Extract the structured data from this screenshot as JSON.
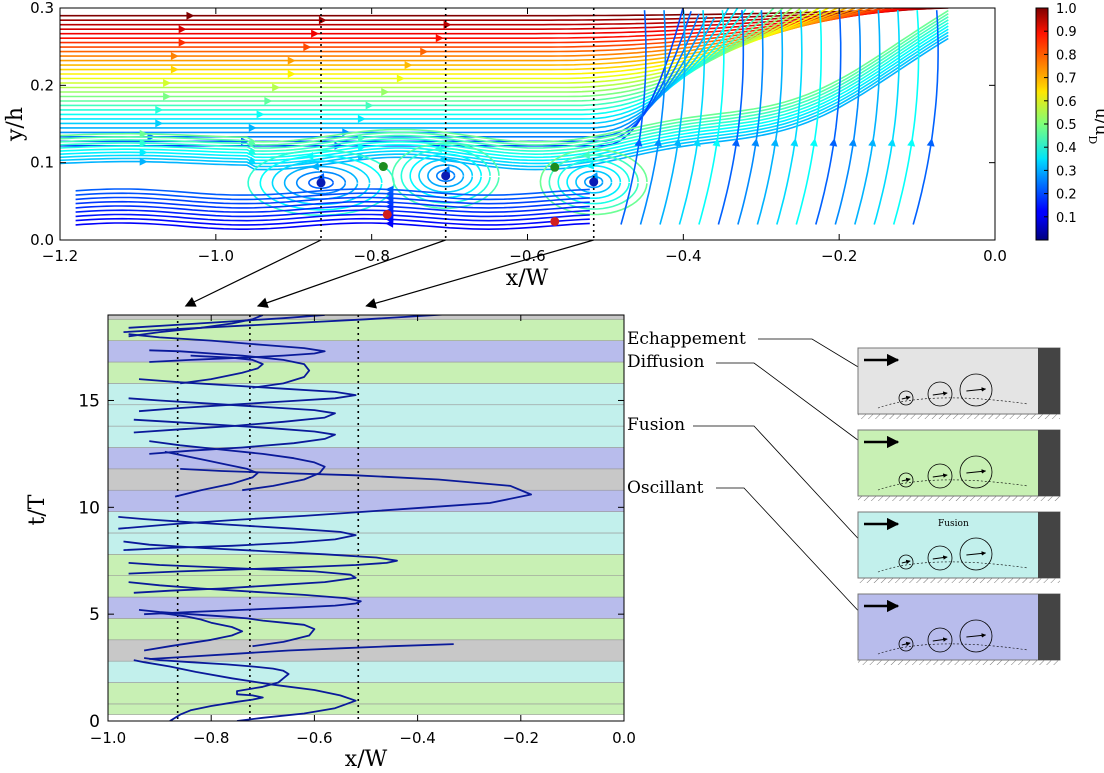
{
  "chart_data": [
    {
      "type": "streamplot",
      "xlabel": "x/W",
      "ylabel": "y/h",
      "xlim": [
        -1.2,
        0.0
      ],
      "ylim": [
        0.0,
        0.3
      ],
      "xticks": [
        "−1.2",
        "−1.0",
        "−0.8",
        "−0.6",
        "−0.4",
        "−0.2",
        "0.0"
      ],
      "xtick_values": [
        -1.2,
        -1.0,
        -0.8,
        -0.6,
        -0.4,
        -0.2,
        0.0
      ],
      "yticks": [
        "0.0",
        "0.1",
        "0.2",
        "0.3"
      ],
      "ytick_values": [
        0.0,
        0.1,
        0.2,
        0.3
      ],
      "colormap": "jet",
      "colorbar_label": "u/u_D",
      "colorbar_range": [
        0.0,
        1.0
      ],
      "colorbar_ticks": [
        "0.1",
        "0.2",
        "0.3",
        "0.4",
        "0.5",
        "0.6",
        "0.7",
        "0.8",
        "0.9",
        "1.0"
      ],
      "colorbar_tick_values": [
        0.1,
        0.2,
        0.3,
        0.4,
        0.5,
        0.6,
        0.7,
        0.8,
        0.9,
        1.0
      ],
      "vortex_centers": [
        {
          "x": -0.865,
          "y": 0.074
        },
        {
          "x": -0.705,
          "y": 0.083
        },
        {
          "x": -0.515,
          "y": 0.075
        }
      ],
      "saddle_points_green": [
        {
          "x": -0.785,
          "y": 0.095
        },
        {
          "x": -0.565,
          "y": 0.094
        }
      ],
      "stagnation_points_red": [
        {
          "x": -0.78,
          "y": 0.033
        },
        {
          "x": -0.565,
          "y": 0.024
        }
      ],
      "dotted_verticals_x": [
        -0.865,
        -0.705,
        -0.515
      ],
      "grid": false
    },
    {
      "type": "line",
      "xlabel": "x/W",
      "ylabel": "t/T",
      "xlim": [
        -1.0,
        0.0
      ],
      "ylim": [
        0,
        19
      ],
      "xticks": [
        "−1.0",
        "−0.8",
        "−0.6",
        "−0.4",
        "−0.2",
        "0.0"
      ],
      "xtick_values": [
        -1.0,
        -0.8,
        -0.6,
        -0.4,
        -0.2,
        0.0
      ],
      "yticks": [
        "0",
        "5",
        "10",
        "15"
      ],
      "ytick_values": [
        0,
        5,
        10,
        15
      ],
      "dotted_verticals_x": [
        -0.865,
        -0.725,
        -0.515
      ],
      "line_color": "#0a1a9a",
      "bands": [
        {
          "from": 0.3,
          "to": 0.8,
          "regime": "Diffusion"
        },
        {
          "from": 0.8,
          "to": 1.8,
          "regime": "Diffusion"
        },
        {
          "from": 1.8,
          "to": 2.8,
          "regime": "Fusion"
        },
        {
          "from": 2.8,
          "to": 3.8,
          "regime": "Echappement"
        },
        {
          "from": 3.8,
          "to": 4.8,
          "regime": "Diffusion"
        },
        {
          "from": 4.8,
          "to": 5.8,
          "regime": "Oscillant"
        },
        {
          "from": 5.8,
          "to": 6.8,
          "regime": "Diffusion"
        },
        {
          "from": 6.8,
          "to": 7.8,
          "regime": "Diffusion"
        },
        {
          "from": 7.8,
          "to": 8.8,
          "regime": "Fusion"
        },
        {
          "from": 8.8,
          "to": 9.8,
          "regime": "Fusion"
        },
        {
          "from": 9.8,
          "to": 10.8,
          "regime": "Oscillant"
        },
        {
          "from": 10.8,
          "to": 11.8,
          "regime": "Echappement"
        },
        {
          "from": 11.8,
          "to": 12.8,
          "regime": "Oscillant"
        },
        {
          "from": 12.8,
          "to": 13.8,
          "regime": "Fusion"
        },
        {
          "from": 13.8,
          "to": 14.8,
          "regime": "Fusion"
        },
        {
          "from": 14.8,
          "to": 15.8,
          "regime": "Fusion"
        },
        {
          "from": 15.8,
          "to": 16.8,
          "regime": "Diffusion"
        },
        {
          "from": 16.8,
          "to": 17.8,
          "regime": "Oscillant"
        },
        {
          "from": 17.8,
          "to": 18.8,
          "regime": "Diffusion"
        },
        {
          "from": 18.8,
          "to": 19.0,
          "regime": "Echappement"
        }
      ],
      "series": [
        {
          "x": [
            -0.88,
            -0.86,
            -0.84,
            -0.8,
            -0.75,
            -0.72,
            -0.7,
            -0.72,
            -0.75,
            -0.75,
            -0.7,
            -0.67,
            -0.66,
            -0.65,
            -0.66,
            -0.68,
            -0.72,
            -0.77,
            -0.84,
            -0.9,
            -0.93
          ],
          "t": [
            0.0,
            0.3,
            0.5,
            0.7,
            0.9,
            1.0,
            1.1,
            1.2,
            1.25,
            1.4,
            1.6,
            1.8,
            2.0,
            2.2,
            2.35,
            2.45,
            2.55,
            2.65,
            2.75,
            2.85,
            2.95
          ]
        },
        {
          "x": [
            -0.75,
            -0.7,
            -0.62,
            -0.56,
            -0.52,
            -0.55,
            -0.6,
            -0.68,
            -0.76,
            -0.83,
            -0.88,
            -0.93,
            -0.95
          ],
          "t": [
            0.0,
            0.15,
            0.35,
            0.6,
            0.95,
            1.2,
            1.45,
            1.7,
            2.0,
            2.3,
            2.55,
            2.75,
            2.85
          ]
        },
        {
          "x": [
            -0.92,
            -0.85,
            -0.75,
            -0.65,
            -0.55,
            -0.45,
            -0.33
          ],
          "t": [
            2.9,
            3.0,
            3.15,
            3.3,
            3.4,
            3.5,
            3.6
          ]
        },
        {
          "x": [
            -0.93,
            -0.88,
            -0.8,
            -0.76,
            -0.74,
            -0.76,
            -0.8,
            -0.82,
            -0.85,
            -0.88,
            -0.9
          ],
          "t": [
            3.3,
            3.5,
            3.8,
            4.0,
            4.2,
            4.4,
            4.6,
            4.75,
            4.9,
            5.0,
            5.05
          ]
        },
        {
          "x": [
            -0.72,
            -0.66,
            -0.61,
            -0.6,
            -0.62,
            -0.66,
            -0.7,
            -0.73,
            -0.78,
            -0.84,
            -0.9,
            -0.94
          ],
          "t": [
            3.5,
            3.7,
            4.0,
            4.3,
            4.5,
            4.6,
            4.7,
            4.8,
            4.9,
            5.0,
            5.1,
            5.2
          ]
        },
        {
          "x": [
            -0.93,
            -0.84,
            -0.74,
            -0.64,
            -0.56,
            -0.52,
            -0.51,
            -0.54,
            -0.62,
            -0.72,
            -0.82,
            -0.9,
            -0.96
          ],
          "t": [
            5.0,
            5.1,
            5.2,
            5.3,
            5.4,
            5.5,
            5.6,
            5.75,
            5.9,
            6.05,
            6.2,
            6.35,
            6.5
          ]
        },
        {
          "x": [
            -0.95,
            -0.88,
            -0.78,
            -0.68,
            -0.58,
            -0.52,
            -0.53,
            -0.6,
            -0.7,
            -0.8,
            -0.9,
            -0.96
          ],
          "t": [
            6.0,
            6.1,
            6.2,
            6.35,
            6.5,
            6.7,
            6.85,
            7.0,
            7.1,
            7.2,
            7.3,
            7.4
          ]
        },
        {
          "x": [
            -0.96,
            -0.86,
            -0.74,
            -0.62,
            -0.52,
            -0.46,
            -0.44,
            -0.48,
            -0.58,
            -0.7,
            -0.82,
            -0.92,
            -0.97
          ],
          "t": [
            6.9,
            7.0,
            7.1,
            7.2,
            7.3,
            7.4,
            7.5,
            7.65,
            7.8,
            7.95,
            8.1,
            8.25,
            8.4
          ]
        },
        {
          "x": [
            -0.97,
            -0.88,
            -0.76,
            -0.64,
            -0.56,
            -0.52,
            -0.55,
            -0.64,
            -0.74,
            -0.84,
            -0.93,
            -0.98
          ],
          "t": [
            8.0,
            8.1,
            8.2,
            8.35,
            8.5,
            8.7,
            8.85,
            9.0,
            9.15,
            9.3,
            9.45,
            9.55
          ]
        },
        {
          "x": [
            -0.98,
            -0.88,
            -0.76,
            -0.62,
            -0.5,
            -0.38,
            -0.26,
            -0.18,
            -0.22,
            -0.36,
            -0.52,
            -0.66,
            -0.78,
            -0.86
          ],
          "t": [
            9.0,
            9.2,
            9.4,
            9.6,
            9.8,
            10.0,
            10.2,
            10.6,
            11.0,
            11.3,
            11.5,
            11.6,
            11.7,
            11.8
          ]
        },
        {
          "x": [
            -0.87,
            -0.82,
            -0.76,
            -0.72,
            -0.71,
            -0.73,
            -0.77,
            -0.81,
            -0.85,
            -0.89
          ],
          "t": [
            10.5,
            10.8,
            11.1,
            11.4,
            11.6,
            11.8,
            12.0,
            12.2,
            12.4,
            12.6
          ]
        },
        {
          "x": [
            -0.74,
            -0.68,
            -0.62,
            -0.59,
            -0.58,
            -0.6,
            -0.64,
            -0.7,
            -0.78,
            -0.86,
            -0.92
          ],
          "t": [
            10.8,
            11.0,
            11.3,
            11.6,
            11.9,
            12.1,
            12.3,
            12.5,
            12.7,
            12.9,
            13.1
          ]
        },
        {
          "x": [
            -0.92,
            -0.84,
            -0.74,
            -0.64,
            -0.58,
            -0.56,
            -0.6,
            -0.68,
            -0.78,
            -0.88,
            -0.95
          ],
          "t": [
            12.5,
            12.65,
            12.8,
            13.0,
            13.2,
            13.4,
            13.55,
            13.7,
            13.85,
            14.0,
            14.1
          ]
        },
        {
          "x": [
            -0.95,
            -0.86,
            -0.76,
            -0.66,
            -0.58,
            -0.56,
            -0.6,
            -0.7,
            -0.8,
            -0.9,
            -0.96
          ],
          "t": [
            13.5,
            13.65,
            13.8,
            14.0,
            14.2,
            14.4,
            14.55,
            14.7,
            14.85,
            15.0,
            15.1
          ]
        },
        {
          "x": [
            -0.94,
            -0.86,
            -0.76,
            -0.66,
            -0.56,
            -0.52,
            -0.56,
            -0.66,
            -0.76,
            -0.86,
            -0.94
          ],
          "t": [
            14.5,
            14.65,
            14.8,
            14.95,
            15.1,
            15.25,
            15.4,
            15.55,
            15.7,
            15.85,
            16.0
          ]
        },
        {
          "x": [
            -0.86,
            -0.8,
            -0.74,
            -0.71,
            -0.7,
            -0.72,
            -0.76,
            -0.8,
            -0.84
          ],
          "t": [
            15.8,
            16.0,
            16.3,
            16.5,
            16.7,
            16.9,
            17.0,
            17.05,
            17.1
          ]
        },
        {
          "x": [
            -0.72,
            -0.66,
            -0.62,
            -0.61,
            -0.62,
            -0.66,
            -0.7,
            -0.74,
            -0.8,
            -0.86,
            -0.92
          ],
          "t": [
            15.6,
            15.8,
            16.1,
            16.4,
            16.7,
            16.9,
            17.0,
            17.1,
            17.2,
            17.3,
            17.35
          ]
        },
        {
          "x": [
            -0.92,
            -0.84,
            -0.74,
            -0.66,
            -0.6,
            -0.58,
            -0.62,
            -0.7,
            -0.8,
            -0.9,
            -0.96
          ],
          "t": [
            16.8,
            16.9,
            17.0,
            17.1,
            17.2,
            17.3,
            17.45,
            17.6,
            17.8,
            17.95,
            18.1
          ]
        },
        {
          "x": [
            -0.96,
            -0.9,
            -0.82,
            -0.76,
            -0.72,
            -0.7
          ],
          "t": [
            18.0,
            18.2,
            18.4,
            18.6,
            18.8,
            19.0
          ]
        },
        {
          "x": [
            -0.96,
            -0.86,
            -0.76,
            -0.66,
            -0.58
          ],
          "t": [
            18.4,
            18.55,
            18.7,
            18.85,
            19.0
          ]
        },
        {
          "x": [
            -0.97,
            -0.86,
            -0.74,
            -0.62,
            -0.5,
            -0.4,
            -0.33
          ],
          "t": [
            18.2,
            18.35,
            18.5,
            18.65,
            18.8,
            18.95,
            19.05
          ]
        }
      ],
      "grid": false
    }
  ],
  "regimes": {
    "labels": [
      "Echappement",
      "Diffusion",
      "Fusion",
      "Oscillant"
    ],
    "colors": {
      "Echappement": "#c8c8c8",
      "Diffusion": "#c8f0b4",
      "Fusion": "#c2f0ec",
      "Oscillant": "#b8bcec"
    },
    "panel_backgrounds": [
      "#e4e4e4",
      "#c8f0b4",
      "#c2f0ec",
      "#b8bcec"
    ],
    "fusion_sketch_label": "Fusion"
  }
}
